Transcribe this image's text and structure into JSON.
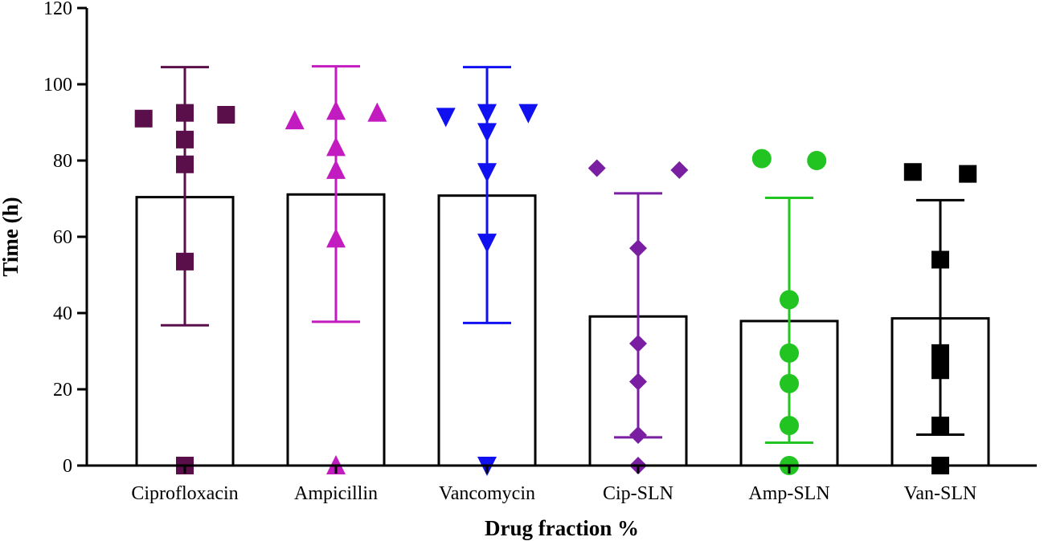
{
  "chart_data": {
    "type": "bar",
    "title": "",
    "xlabel": "Drug fraction %",
    "ylabel": "Time (h)",
    "ylim": [
      0,
      120
    ],
    "yticks": [
      0,
      20,
      40,
      60,
      80,
      100,
      120
    ],
    "categories": [
      "Ciprofloxacin",
      "Ampicillin",
      "Vancomycin",
      "Cip-SLN",
      "Amp-SLN",
      "Van-SLN"
    ],
    "bars": [
      {
        "name": "Ciprofloxacin",
        "mean": 70.4,
        "error_low": 36.8,
        "error_high": 104.5,
        "color": "#5a0f4a",
        "marker": "square",
        "points": [
          {
            "x": -0.27,
            "y": 91
          },
          {
            "x": 0.0,
            "y": 92.5
          },
          {
            "x": 0.27,
            "y": 92
          },
          {
            "x": 0.0,
            "y": 85.5
          },
          {
            "x": 0.0,
            "y": 79
          },
          {
            "x": 0.0,
            "y": 53.5
          },
          {
            "x": 0.0,
            "y": 0
          }
        ]
      },
      {
        "name": "Ampicillin",
        "mean": 71.1,
        "error_low": 37.7,
        "error_high": 104.7,
        "color": "#c21bbf",
        "marker": "triangle-up",
        "points": [
          {
            "x": -0.27,
            "y": 90.5
          },
          {
            "x": 0.0,
            "y": 93
          },
          {
            "x": 0.27,
            "y": 92.5
          },
          {
            "x": 0.0,
            "y": 83.5
          },
          {
            "x": 0.0,
            "y": 77.5
          },
          {
            "x": 0.0,
            "y": 59.5
          },
          {
            "x": 0.0,
            "y": 0
          }
        ]
      },
      {
        "name": "Vancomycin",
        "mean": 70.8,
        "error_low": 37.4,
        "error_high": 104.5,
        "color": "#1010f0",
        "marker": "triangle-down",
        "points": [
          {
            "x": -0.27,
            "y": 91.5
          },
          {
            "x": 0.0,
            "y": 92.5
          },
          {
            "x": 0.27,
            "y": 92.5
          },
          {
            "x": 0.0,
            "y": 87.5
          },
          {
            "x": 0.0,
            "y": 77
          },
          {
            "x": 0.0,
            "y": 58.5
          },
          {
            "x": 0.0,
            "y": 0
          }
        ]
      },
      {
        "name": "Cip-SLN",
        "mean": 39.1,
        "error_low": 7.4,
        "error_high": 71.4,
        "color": "#7b1fa2",
        "marker": "diamond",
        "points": [
          {
            "x": -0.27,
            "y": 78
          },
          {
            "x": 0.27,
            "y": 77.5
          },
          {
            "x": 0.0,
            "y": 57
          },
          {
            "x": 0.0,
            "y": 32
          },
          {
            "x": 0.0,
            "y": 22
          },
          {
            "x": 0.0,
            "y": 8
          },
          {
            "x": 0.0,
            "y": 0
          }
        ]
      },
      {
        "name": "Amp-SLN",
        "mean": 37.9,
        "error_low": 6.0,
        "error_high": 70.2,
        "color": "#22c422",
        "marker": "circle",
        "points": [
          {
            "x": -0.18,
            "y": 80.5
          },
          {
            "x": 0.18,
            "y": 80
          },
          {
            "x": 0.0,
            "y": 43.5
          },
          {
            "x": 0.0,
            "y": 29.5
          },
          {
            "x": 0.0,
            "y": 21.5
          },
          {
            "x": 0.0,
            "y": 10.5
          },
          {
            "x": 0.0,
            "y": 0
          }
        ]
      },
      {
        "name": "Van-SLN",
        "mean": 38.6,
        "error_low": 8.1,
        "error_high": 69.6,
        "color": "#000000",
        "marker": "square",
        "points": [
          {
            "x": -0.18,
            "y": 77
          },
          {
            "x": 0.18,
            "y": 76.5
          },
          {
            "x": 0.0,
            "y": 54
          },
          {
            "x": 0.0,
            "y": 29.5
          },
          {
            "x": 0.0,
            "y": 25
          },
          {
            "x": 0.0,
            "y": 10.5
          },
          {
            "x": 0.0,
            "y": 0
          }
        ]
      }
    ]
  }
}
